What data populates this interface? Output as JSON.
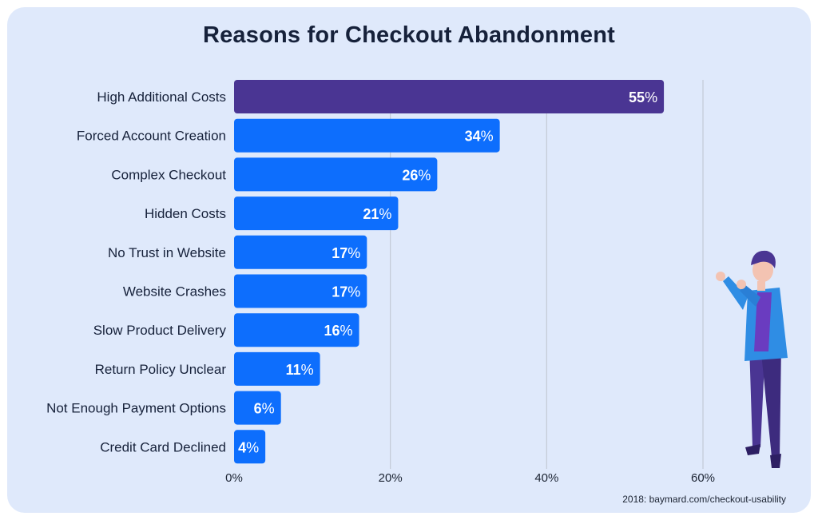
{
  "chart_data": {
    "type": "bar",
    "orientation": "horizontal",
    "title": "Reasons for Checkout Abandonment",
    "categories": [
      "High Additional Costs",
      "Forced Account Creation",
      "Complex Checkout",
      "Hidden Costs",
      "No Trust in Website",
      "Website Crashes",
      "Slow Product Delivery",
      "Return Policy Unclear",
      "Not Enough Payment Options",
      "Credit Card Declined"
    ],
    "values": [
      55,
      34,
      26,
      21,
      17,
      17,
      16,
      11,
      6,
      4
    ],
    "value_suffix": "%",
    "xlim": [
      0,
      60
    ],
    "xticks": [
      0,
      20,
      40,
      60
    ],
    "xtick_labels": [
      "0%",
      "20%",
      "40%",
      "60%"
    ],
    "grid": "vertical",
    "colors": {
      "highlight": "#4a3593",
      "bar": "#0d6efd",
      "background": "#dfe9fb",
      "grid": "#c3cad6"
    },
    "highlight_index": 0
  },
  "footer": {
    "source": "2018: baymard.com/checkout-usability"
  }
}
